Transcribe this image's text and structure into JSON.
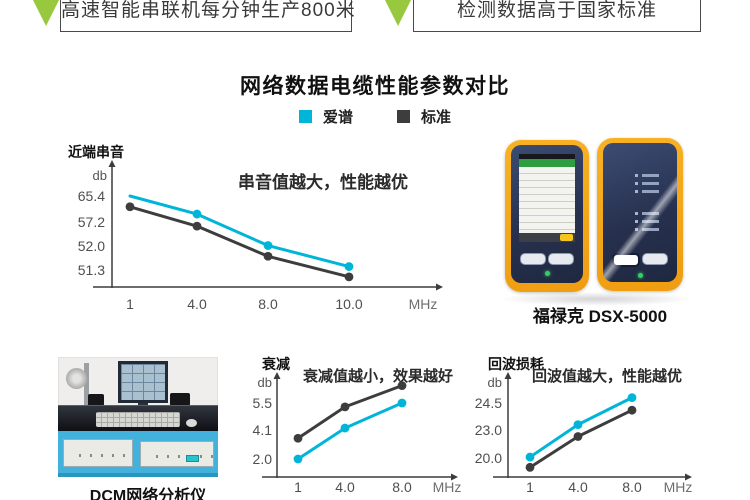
{
  "banners": [
    {
      "text": "高速智能串联机每分钟生产800米"
    },
    {
      "text": "检测数据高于国家标准"
    }
  ],
  "header": {
    "title": "网络数据电缆性能参数对比"
  },
  "legend": [
    {
      "label": "爱谱",
      "color": "#00b5d8"
    },
    {
      "label": "标准",
      "color": "#3d3d3d"
    }
  ],
  "colors": {
    "aipu": "#00b5d8",
    "standard": "#3d3d3d",
    "banner_green": "#97c83e",
    "device_yellow": "#f5a71f",
    "device_navy": "#2c3a58",
    "machine_blue": "#42b2dc"
  },
  "products": {
    "tester_caption": "福禄克 DSX-5000",
    "analyzer_caption": "DCM网络分析仪"
  },
  "chart_data": [
    {
      "type": "line",
      "title": "近端串音",
      "ylabel": "db",
      "xunit": "MHz",
      "annotation": "串音值越大，性能越优",
      "categories": [
        "1",
        "4.0",
        "8.0",
        "10.0"
      ],
      "yticks": [
        65.4,
        57.2,
        52.0,
        51.3
      ],
      "series": [
        {
          "name": "标准",
          "color": "standard",
          "values": [
            62.0,
            56.3,
            51.7,
            51.1
          ],
          "dots": [
            true,
            true,
            true,
            true
          ]
        },
        {
          "name": "爱谱",
          "color": "aipu",
          "values": [
            65.4,
            59.7,
            52.1,
            51.4
          ],
          "dots": [
            false,
            true,
            true,
            true
          ]
        }
      ]
    },
    {
      "type": "line",
      "title": "衰减",
      "ylabel": "db",
      "xunit": "MHz",
      "annotation": "衰减值越小，效果越好",
      "categories": [
        "1",
        "4.0",
        "8.0"
      ],
      "yticks": [
        5.5,
        4.1,
        2.0
      ],
      "series": [
        {
          "name": "标准",
          "color": "standard",
          "values": [
            3.5,
            5.3,
            6.4
          ],
          "dots": [
            true,
            true,
            true
          ]
        },
        {
          "name": "爱谱",
          "color": "aipu",
          "values": [
            2.0,
            4.2,
            5.5
          ],
          "dots": [
            true,
            true,
            true
          ]
        }
      ]
    },
    {
      "type": "line",
      "title": "回波损耗",
      "ylabel": "db",
      "xunit": "MHz",
      "annotation": "回波值越大，性能越优",
      "categories": [
        "1",
        "4.0",
        "8.0"
      ],
      "yticks": [
        24.5,
        23.0,
        20.0
      ],
      "series": [
        {
          "name": "标准",
          "color": "standard",
          "values": [
            19.0,
            22.3,
            24.1
          ],
          "dots": [
            true,
            true,
            true
          ]
        },
        {
          "name": "爱谱",
          "color": "aipu",
          "values": [
            20.1,
            23.3,
            24.8
          ],
          "dots": [
            true,
            true,
            true
          ]
        }
      ]
    }
  ]
}
